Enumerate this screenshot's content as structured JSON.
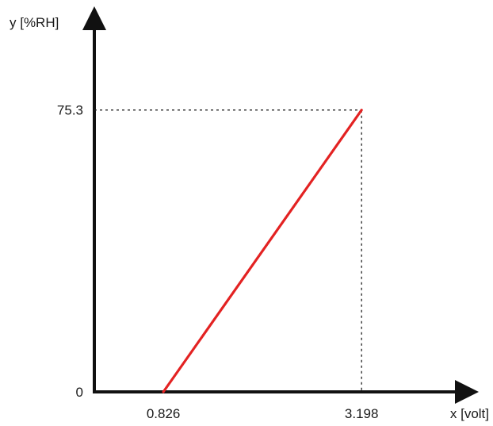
{
  "chart_data": {
    "type": "line",
    "title": "",
    "xlabel": "x [volt]",
    "ylabel": "y [%RH]",
    "xlim": [
      0,
      4.6
    ],
    "ylim": [
      0,
      103
    ],
    "grid": false,
    "series": [
      {
        "x": [
          0.826,
          3.198
        ],
        "y": [
          0,
          75.3
        ],
        "color": "#e32222"
      }
    ],
    "x_ticks": [
      {
        "value": 0.826,
        "label": "0.826"
      },
      {
        "value": 3.198,
        "label": "3.198"
      }
    ],
    "y_ticks": [
      {
        "value": 0,
        "label": "0"
      },
      {
        "value": 75.3,
        "label": "75.3"
      }
    ],
    "reference_lines": [
      {
        "x": 3.198,
        "y": 75.3,
        "style": "dotted",
        "color": "#222222"
      }
    ],
    "axis_color": "#111111"
  }
}
